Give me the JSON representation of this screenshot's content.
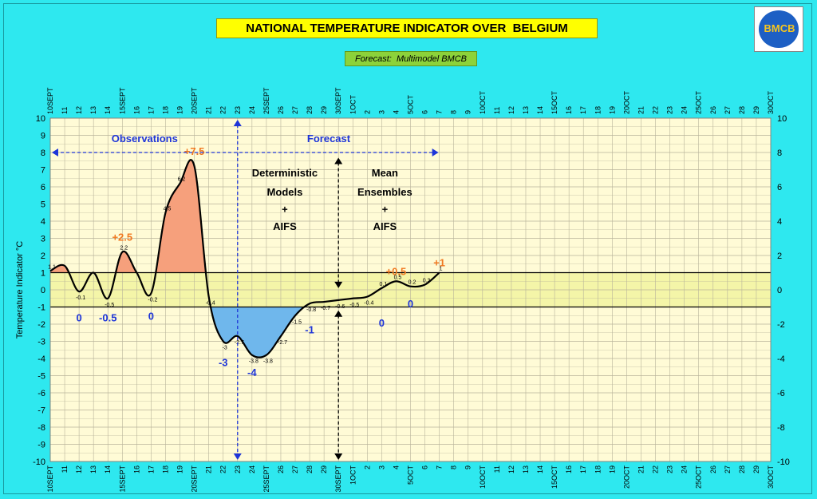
{
  "header": {
    "title": "NATIONAL TEMPERATURE INDICATOR OVER  BELGIUM",
    "subtitle": "Forecast:  Multimodel BMCB",
    "logo_text": "BMCB"
  },
  "colors": {
    "background": "#2ee8ef",
    "plot_bg": "#fffbd6",
    "neutral_band": "#f4f5a8",
    "warm_fill": "#f6a07c",
    "cold_fill": "#6fb7ec",
    "blue_text": "#1e35d8",
    "orange_text": "#f07820"
  },
  "chart_data": {
    "type": "line",
    "ylabel": "Temperature Indicator   °C",
    "ylim": [
      -10,
      10
    ],
    "yticks": [
      -10,
      -9,
      -8,
      -7,
      -6,
      -5,
      -4,
      -3,
      -2,
      -1,
      0,
      1,
      2,
      3,
      4,
      5,
      6,
      7,
      8,
      9,
      10
    ],
    "yticks_right": [
      -10,
      -8,
      -6,
      -4,
      -2,
      0,
      2,
      4,
      6,
      8,
      10
    ],
    "neutral_band": [
      -1,
      1
    ],
    "x_dates": [
      "10SEPT",
      "11",
      "12",
      "13",
      "14",
      "15SEPT",
      "16",
      "17",
      "18",
      "19",
      "20SEPT",
      "21",
      "22",
      "23",
      "24",
      "25SEPT",
      "26",
      "27",
      "28",
      "29",
      "30SEPT",
      "1OCT",
      "2",
      "3",
      "4",
      "5OCT",
      "6",
      "7",
      "8",
      "9",
      "10OCT",
      "11",
      "12",
      "13",
      "14",
      "15OCT",
      "16",
      "17",
      "18",
      "19",
      "20OCT",
      "21",
      "22",
      "23",
      "24",
      "25OCT",
      "26",
      "27",
      "28",
      "29",
      "30OCT"
    ],
    "series": [
      {
        "points": [
          {
            "x": "10SEPT",
            "y": 1.1
          },
          {
            "x": "11",
            "y": 1.4
          },
          {
            "x": "12",
            "y": -0.1
          },
          {
            "x": "13",
            "y": 1.0
          },
          {
            "x": "14",
            "y": -0.5
          },
          {
            "x": "15SEPT",
            "y": 2.2
          },
          {
            "x": "16",
            "y": 1.0
          },
          {
            "x": "17",
            "y": -0.2
          },
          {
            "x": "18",
            "y": 4.5
          },
          {
            "x": "19",
            "y": 6.2
          },
          {
            "x": "20SEPT",
            "y": 7.2
          },
          {
            "x": "21",
            "y": -0.4
          },
          {
            "x": "22",
            "y": -3
          },
          {
            "x": "23",
            "y": -2.7
          },
          {
            "x": "24",
            "y": -3.8
          },
          {
            "x": "25SEPT",
            "y": -3.8
          },
          {
            "x": "26",
            "y": -2.7
          },
          {
            "x": "27",
            "y": -1.5
          },
          {
            "x": "28",
            "y": -0.8
          },
          {
            "x": "29",
            "y": -0.7
          },
          {
            "x": "30SEPT",
            "y": -0.6
          },
          {
            "x": "1OCT",
            "y": -0.5
          },
          {
            "x": "2",
            "y": -0.4
          },
          {
            "x": "3",
            "y": 0.1
          },
          {
            "x": "4",
            "y": 0.5
          },
          {
            "x": "5OCT",
            "y": 0.2
          },
          {
            "x": "6",
            "y": 0.3
          },
          {
            "x": "7",
            "y": 1.0
          }
        ]
      }
    ],
    "point_labels": [
      {
        "x": "10SEPT",
        "y": 1.1,
        "text": "1.1"
      },
      {
        "x": "12",
        "y": -0.1,
        "text": "-0.1"
      },
      {
        "x": "14",
        "y": -0.5,
        "text": "-0.5"
      },
      {
        "x": "15SEPT",
        "y": 2.2,
        "text": "2.2"
      },
      {
        "x": "17",
        "y": -0.2,
        "text": "-0.2"
      },
      {
        "x": "18",
        "y": 4.5,
        "text": "4.5"
      },
      {
        "x": "19",
        "y": 6.2,
        "text": "6.2"
      },
      {
        "x": "21",
        "y": -0.4,
        "text": "-0.4"
      },
      {
        "x": "22",
        "y": -3,
        "text": "-3"
      },
      {
        "x": "23",
        "y": -2.7,
        "text": "-2.7"
      },
      {
        "x": "24",
        "y": -3.8,
        "text": "-3.8"
      },
      {
        "x": "25SEPT",
        "y": -3.8,
        "text": "-3.8"
      },
      {
        "x": "26",
        "y": -2.7,
        "text": "-2.7"
      },
      {
        "x": "27",
        "y": -1.5,
        "text": "-1.5"
      },
      {
        "x": "28",
        "y": -0.8,
        "text": "-0.8"
      },
      {
        "x": "29",
        "y": -0.7,
        "text": "-0.7"
      },
      {
        "x": "30SEPT",
        "y": -0.6,
        "text": "-0.6"
      },
      {
        "x": "1OCT",
        "y": -0.5,
        "text": "-0.5"
      },
      {
        "x": "2",
        "y": -0.4,
        "text": "-0.4"
      },
      {
        "x": "3",
        "y": 0.1,
        "text": "0.1"
      },
      {
        "x": "4",
        "y": 0.5,
        "text": "0.5"
      },
      {
        "x": "5OCT",
        "y": 0.2,
        "text": "0.2"
      },
      {
        "x": "6",
        "y": 0.3,
        "text": "0.3"
      },
      {
        "x": "7",
        "y": 1.0,
        "text": "1"
      }
    ],
    "peak_annotations": [
      {
        "text": "+7.5",
        "x": "20SEPT",
        "y": 7.5,
        "color": "orange"
      },
      {
        "text": "+2.5",
        "x": "15SEPT",
        "y": 2.5,
        "color": "orange"
      },
      {
        "text": "+0.5",
        "x": "4",
        "y": 0.5,
        "color": "orange"
      },
      {
        "text": "+1",
        "x": "7",
        "y": 1.0,
        "color": "orange"
      },
      {
        "text": "0",
        "x": "12",
        "y": -1.6,
        "color": "blue"
      },
      {
        "text": "-0.5",
        "x": "14",
        "y": -1.6,
        "color": "blue"
      },
      {
        "text": "0",
        "x": "17",
        "y": -1.5,
        "color": "blue"
      },
      {
        "text": "-3",
        "x": "22",
        "y": -4.2,
        "color": "blue"
      },
      {
        "text": "-4",
        "x": "24",
        "y": -4.8,
        "color": "blue"
      },
      {
        "text": "-1",
        "x": "28",
        "y": -2.3,
        "color": "blue"
      },
      {
        "text": "0",
        "x": "3",
        "y": -1.9,
        "color": "blue"
      },
      {
        "text": "0",
        "x": "5OCT",
        "y": -0.8,
        "color": "blue"
      }
    ],
    "text_annotations": {
      "observations": "Observations",
      "forecast": "Forecast",
      "det_line1": "Deterministic",
      "det_line2": "Models",
      "det_line3": "+",
      "det_line4": "AIFS",
      "ens_line1": "Mean",
      "ens_line2": "Ensembles",
      "ens_line3": "+",
      "ens_line4": "AIFS"
    }
  }
}
